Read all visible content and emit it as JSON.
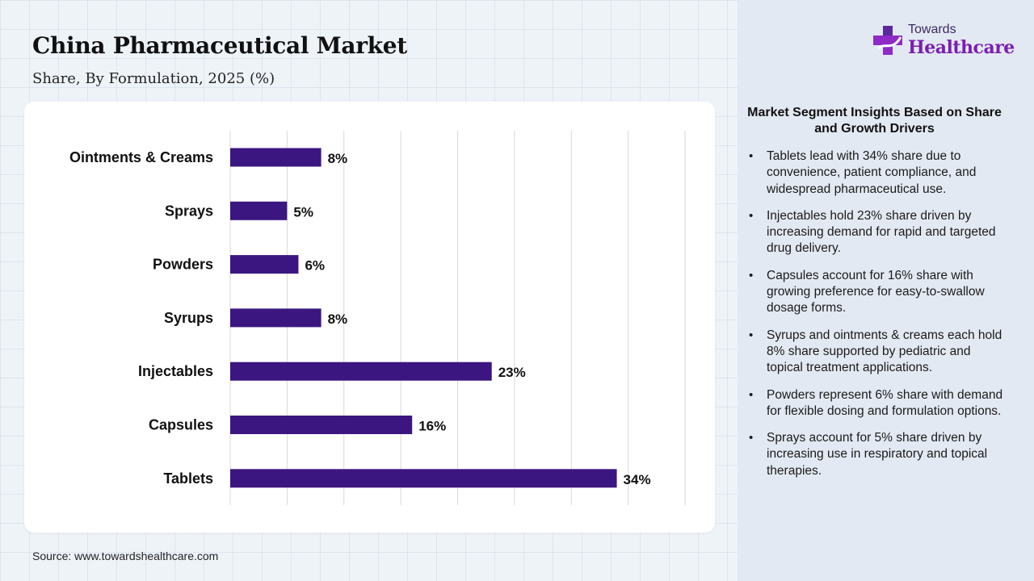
{
  "header": {
    "title": "China Pharmaceutical Market",
    "subtitle": "Share, By Formulation, 2025 (%)"
  },
  "logo": {
    "line1": "Towards",
    "line2": "Healthcare",
    "icon": "medical-cross-icon",
    "colors": {
      "primary": "#7a1fb0",
      "secondary": "#3a2a63"
    }
  },
  "chart_data": {
    "type": "bar",
    "orientation": "horizontal",
    "categories": [
      "Ointments & Creams",
      "Sprays",
      "Powders",
      "Syrups",
      "Injectables",
      "Capsules",
      "Tablets"
    ],
    "values": [
      8,
      5,
      6,
      8,
      23,
      16,
      34
    ],
    "value_labels": [
      "8%",
      "5%",
      "6%",
      "8%",
      "23%",
      "16%",
      "34%"
    ],
    "xlim": [
      0,
      40
    ],
    "grid": true,
    "legend": "none",
    "bar_color": "#3c1680"
  },
  "insights": {
    "title": "Market Segment Insights Based on Share and Growth Drivers",
    "items": [
      "Tablets lead with 34% share due to convenience, patient compliance, and widespread pharmaceutical use.",
      "Injectables hold 23% share driven by increasing demand for rapid and targeted drug delivery.",
      "Capsules account for 16% share with growing preference for easy-to-swallow dosage forms.",
      "Syrups and ointments & creams each hold 8% share supported by pediatric and topical treatment applications.",
      "Powders represent 6% share with demand for flexible dosing and formulation options.",
      "Sprays account for 5% share driven by increasing use in respiratory and topical therapies."
    ]
  },
  "footer": {
    "source": "Source: www.towardshealthcare.com"
  }
}
